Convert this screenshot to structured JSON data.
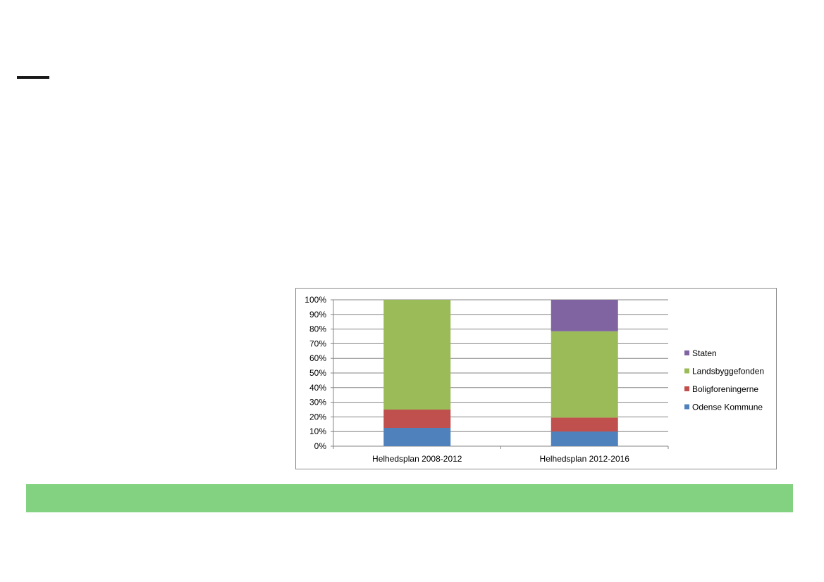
{
  "page": {
    "band_color": "#82d282",
    "accent_line_color": "#1a1a1a"
  },
  "chart_data": {
    "type": "bar",
    "stacked": true,
    "title": "",
    "xlabel": "",
    "ylabel": "",
    "ylim": [
      0,
      100
    ],
    "y_ticks": [
      "0%",
      "10%",
      "20%",
      "30%",
      "40%",
      "50%",
      "60%",
      "70%",
      "80%",
      "90%",
      "100%"
    ],
    "categories": [
      "Helhedsplan 2008-2012",
      "Helhedsplan 2012-2016"
    ],
    "series": [
      {
        "name": "Odense Kommune",
        "color": "#4f81bd",
        "values": [
          12.5,
          10
        ]
      },
      {
        "name": "Boligforeningerne",
        "color": "#c0504d",
        "values": [
          12.5,
          9.5
        ]
      },
      {
        "name": "Landsbyggefonden",
        "color": "#9bbb59",
        "values": [
          75,
          59
        ]
      },
      {
        "name": "Staten",
        "color": "#8064a2",
        "values": [
          0,
          21.5
        ]
      }
    ],
    "legend_order": [
      "Staten",
      "Landsbyggefonden",
      "Boligforeningerne",
      "Odense Kommune"
    ],
    "legend_position": "right",
    "grid": true
  }
}
